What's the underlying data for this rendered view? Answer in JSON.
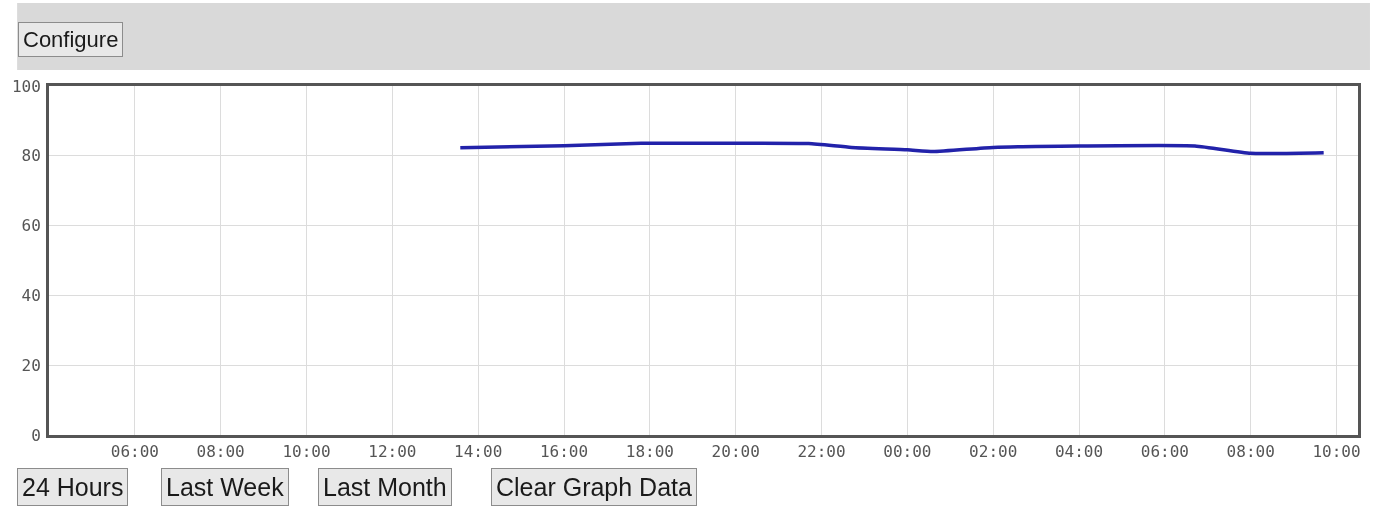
{
  "chart_data": {
    "type": "line",
    "x": [
      "--01-01T13:35",
      "--01-01T16:00",
      "--01-01T17:48",
      "--01-01T20:00",
      "--01-01T21:42",
      "--01-01T22:42",
      "--01-02T00:00",
      "--01-02T00:36",
      "--01-02T02:00",
      "--01-02T04:00",
      "--01-02T06:42",
      "--01-02T08:00",
      "--01-02T09:42"
    ],
    "series": [
      {
        "color": "#2222aa",
        "values": [
          82.3,
          82.9,
          83.6,
          83.6,
          83.5,
          82.4,
          81.7,
          81.2,
          82.4,
          82.8,
          82.8,
          80.7,
          80.9
        ]
      }
    ],
    "xlim": [
      "--01-01T04:00",
      "--01-02T10:30"
    ],
    "xticks": [
      {
        "value": "--01-01T06:00",
        "label": "06:00"
      },
      {
        "value": "--01-01T08:00",
        "label": "08:00"
      },
      {
        "value": "--01-01T10:00",
        "label": "10:00"
      },
      {
        "value": "--01-01T12:00",
        "label": "12:00"
      },
      {
        "value": "--01-01T14:00",
        "label": "14:00"
      },
      {
        "value": "--01-01T16:00",
        "label": "16:00"
      },
      {
        "value": "--01-01T18:00",
        "label": "18:00"
      },
      {
        "value": "--01-01T20:00",
        "label": "20:00"
      },
      {
        "value": "--01-01T22:00",
        "label": "22:00"
      },
      {
        "value": "--01-02T00:00",
        "label": "00:00"
      },
      {
        "value": "--01-02T02:00",
        "label": "02:00"
      },
      {
        "value": "--01-02T04:00",
        "label": "04:00"
      },
      {
        "value": "--01-02T06:00",
        "label": "06:00"
      },
      {
        "value": "--01-02T08:00",
        "label": "08:00"
      },
      {
        "value": "--01-02T10:00",
        "label": "10:00"
      }
    ],
    "ylim": [
      0,
      100
    ],
    "yticks": [
      0,
      20,
      40,
      60,
      80,
      100
    ],
    "grid": true,
    "line_style": "solid",
    "annotations": [
      "Configure",
      "24 Hours",
      "Last Week",
      "Last Month",
      "Clear Graph Data"
    ]
  }
}
